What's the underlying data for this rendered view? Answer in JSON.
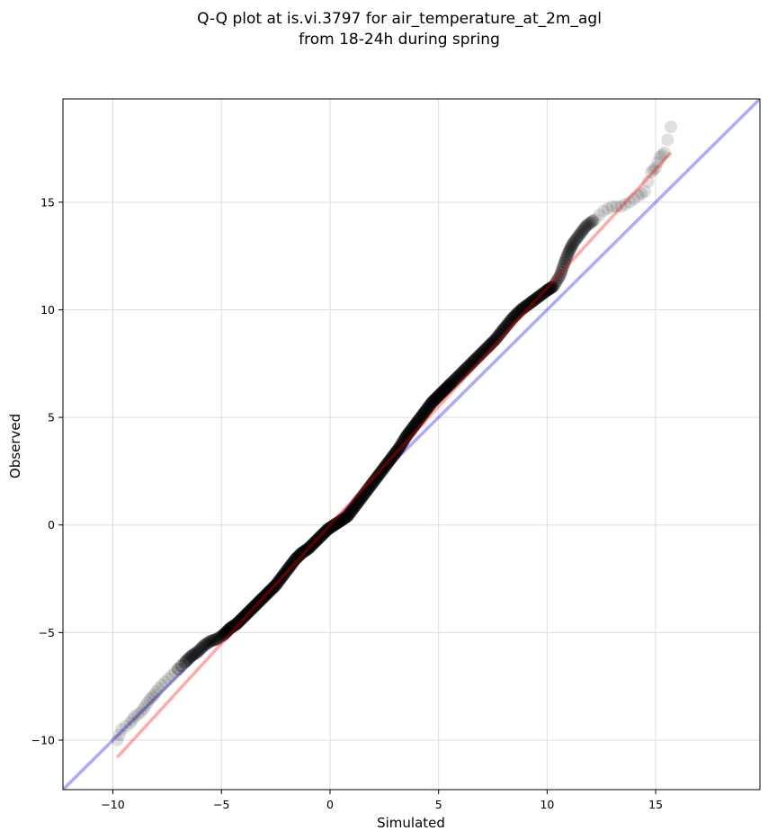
{
  "chart_data": {
    "type": "scatter",
    "title_line1": "Q-Q plot at is.vi.3797 for air_temperature_at_2m_agl",
    "title_line2": "from 18-24h during spring",
    "xlabel": "Simulated",
    "ylabel": "Observed",
    "xlim": [
      -12.3,
      19.8
    ],
    "ylim": [
      -12.3,
      19.8
    ],
    "xticks": [
      -10,
      -5,
      0,
      5,
      10,
      15
    ],
    "yticks": [
      -10,
      -5,
      0,
      5,
      10,
      15
    ],
    "xtick_labels": [
      "−10",
      "−5",
      "0",
      "5",
      "10",
      "15"
    ],
    "ytick_labels": [
      "−10",
      "−5",
      "0",
      "5",
      "10",
      "15"
    ],
    "grid": true,
    "colors": {
      "points": "#000000",
      "identity_line": "#0000ff",
      "fit_line": "#ff0000",
      "grid": "#dddddd"
    },
    "identity_line": {
      "x": [
        -12.3,
        19.8
      ],
      "y": [
        -12.3,
        19.8
      ]
    },
    "fit_line": {
      "x": [
        -9.8,
        15.7
      ],
      "y": [
        -10.8,
        17.3
      ]
    },
    "points": [
      [
        -9.8,
        -10.0
      ],
      [
        -9.6,
        -9.5
      ],
      [
        -9.2,
        -9.2
      ],
      [
        -9.0,
        -8.9
      ],
      [
        -8.7,
        -8.7
      ],
      [
        -8.5,
        -8.4
      ],
      [
        -8.3,
        -8.1
      ],
      [
        -8.1,
        -7.9
      ],
      [
        -7.9,
        -7.6
      ],
      [
        -7.6,
        -7.3
      ],
      [
        -7.3,
        -7.0
      ],
      [
        -7.0,
        -6.7
      ],
      [
        -6.7,
        -6.4
      ],
      [
        -6.4,
        -6.1
      ],
      [
        -6.1,
        -5.9
      ],
      [
        -5.8,
        -5.6
      ],
      [
        -5.5,
        -5.4
      ],
      [
        -5.2,
        -5.3
      ],
      [
        -4.9,
        -5.1
      ],
      [
        -4.6,
        -4.8
      ],
      [
        -4.3,
        -4.6
      ],
      [
        -4.0,
        -4.3
      ],
      [
        -3.7,
        -4.0
      ],
      [
        -3.4,
        -3.7
      ],
      [
        -3.1,
        -3.4
      ],
      [
        -2.8,
        -3.1
      ],
      [
        -2.5,
        -2.8
      ],
      [
        -2.2,
        -2.4
      ],
      [
        -1.9,
        -2.0
      ],
      [
        -1.6,
        -1.6
      ],
      [
        -1.3,
        -1.3
      ],
      [
        -1.0,
        -1.1
      ],
      [
        -0.7,
        -0.8
      ],
      [
        -0.4,
        -0.5
      ],
      [
        -0.1,
        -0.2
      ],
      [
        0.2,
        0.0
      ],
      [
        0.5,
        0.2
      ],
      [
        0.8,
        0.4
      ],
      [
        1.1,
        0.8
      ],
      [
        1.4,
        1.2
      ],
      [
        1.7,
        1.6
      ],
      [
        2.0,
        2.0
      ],
      [
        2.3,
        2.4
      ],
      [
        2.6,
        2.8
      ],
      [
        2.9,
        3.2
      ],
      [
        3.2,
        3.6
      ],
      [
        3.5,
        4.1
      ],
      [
        3.8,
        4.5
      ],
      [
        4.1,
        4.9
      ],
      [
        4.4,
        5.3
      ],
      [
        4.7,
        5.7
      ],
      [
        5.0,
        6.0
      ],
      [
        5.3,
        6.3
      ],
      [
        5.6,
        6.6
      ],
      [
        6.0,
        7.0
      ],
      [
        6.4,
        7.4
      ],
      [
        6.8,
        7.8
      ],
      [
        7.2,
        8.2
      ],
      [
        7.6,
        8.6
      ],
      [
        8.0,
        9.1
      ],
      [
        8.4,
        9.6
      ],
      [
        8.8,
        10.0
      ],
      [
        9.2,
        10.3
      ],
      [
        9.6,
        10.6
      ],
      [
        10.0,
        10.9
      ],
      [
        10.3,
        11.1
      ],
      [
        10.6,
        11.6
      ],
      [
        10.8,
        12.2
      ],
      [
        11.0,
        12.7
      ],
      [
        11.2,
        13.1
      ],
      [
        11.5,
        13.5
      ],
      [
        11.8,
        13.9
      ],
      [
        12.2,
        14.2
      ],
      [
        12.6,
        14.6
      ],
      [
        13.0,
        14.8
      ],
      [
        13.4,
        14.8
      ],
      [
        13.8,
        15.0
      ],
      [
        14.2,
        15.3
      ],
      [
        14.5,
        15.5
      ],
      [
        14.8,
        16.4
      ],
      [
        15.0,
        16.6
      ],
      [
        15.2,
        17.1
      ],
      [
        15.4,
        17.3
      ],
      [
        15.7,
        18.5
      ]
    ]
  }
}
